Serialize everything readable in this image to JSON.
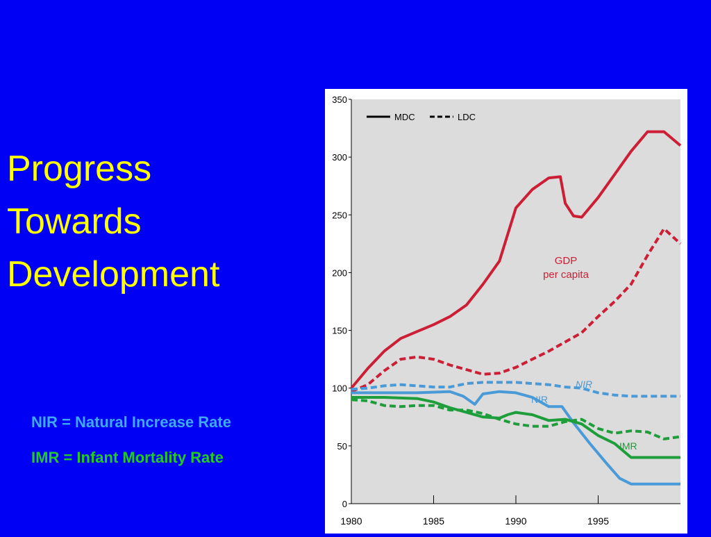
{
  "slide": {
    "title_lines": [
      "Progress",
      "Towards",
      "Development"
    ],
    "definitions": {
      "nir": "NIR = Natural Increase Rate",
      "imr": "IMR = Infant Mortality Rate"
    }
  },
  "colors": {
    "background": "#0000f5",
    "title": "#ffff00",
    "nir_text": "#3fa9f5",
    "imr_text": "#22cc22",
    "plot_bg": "#dcdcdc",
    "gdp": "#cc1f35",
    "nir": "#4a9ad8",
    "imr": "#1e9e3a"
  },
  "chart_data": {
    "type": "line",
    "title": "",
    "xlabel": "",
    "ylabel": "",
    "xlim": [
      1980,
      2000
    ],
    "ylim": [
      0,
      350
    ],
    "x_ticks": [
      1980,
      1985,
      1990,
      1995
    ],
    "y_ticks": [
      0,
      50,
      100,
      150,
      200,
      250,
      300,
      350
    ],
    "grid": false,
    "legend": {
      "position": "top-left",
      "entries": [
        {
          "label": "MDC",
          "style": "solid"
        },
        {
          "label": "LDC",
          "style": "dashed"
        }
      ]
    },
    "annotations": [
      {
        "text": "GDP",
        "series": "gdp"
      },
      {
        "text": "per capita",
        "series": "gdp"
      },
      {
        "text": "NIR",
        "series": "nir",
        "italic": true
      },
      {
        "text": "NIR",
        "series": "nir",
        "italic": false
      },
      {
        "text": "IMR",
        "series": "imr"
      }
    ],
    "series": [
      {
        "name": "MDC",
        "group": "gdp",
        "style": "solid",
        "x": [
          1980,
          1981,
          1982,
          1983,
          1984,
          1985,
          1986,
          1987,
          1988,
          1989,
          1990,
          1991,
          1992,
          1992.7,
          1993,
          1993.5,
          1994,
          1995,
          1996,
          1997,
          1998,
          1999,
          2000
        ],
        "y": [
          100,
          117,
          132,
          143,
          149,
          155,
          162,
          172,
          190,
          210,
          256,
          272,
          282,
          283,
          260,
          249,
          248,
          265,
          285,
          305,
          322,
          322,
          310
        ]
      },
      {
        "name": "LDC",
        "group": "gdp",
        "style": "dashed",
        "x": [
          1980,
          1981,
          1982,
          1983,
          1984,
          1985,
          1986,
          1987,
          1988,
          1989,
          1990,
          1991,
          1992,
          1993,
          1994,
          1995,
          1996,
          1997,
          1998,
          1999,
          2000
        ],
        "y": [
          97,
          103,
          115,
          125,
          127,
          125,
          120,
          116,
          112,
          113,
          118,
          125,
          132,
          140,
          148,
          162,
          175,
          190,
          215,
          238,
          225
        ]
      },
      {
        "name": "MDC",
        "group": "nir",
        "style": "solid",
        "x": [
          1980,
          1982,
          1984,
          1986,
          1986.8,
          1987.5,
          1988,
          1989,
          1990,
          1991,
          1992,
          1992.8,
          1993.5,
          1994.5,
          1995.5,
          1996.3,
          1997,
          1998,
          2000
        ],
        "y": [
          96,
          96,
          96,
          97,
          93,
          86,
          95,
          97,
          96,
          92,
          84,
          84,
          70,
          52,
          35,
          22,
          17,
          17,
          17
        ]
      },
      {
        "name": "LDC",
        "group": "nir",
        "style": "dashed",
        "x": [
          1980,
          1981,
          1982,
          1983,
          1984,
          1985,
          1986,
          1987,
          1988,
          1989,
          1990,
          1991,
          1992,
          1993,
          1994,
          1995,
          1996,
          1997,
          1998,
          1999,
          2000
        ],
        "y": [
          99,
          100,
          102,
          103,
          102,
          101,
          101,
          104,
          105,
          105,
          105,
          104,
          103,
          101,
          100,
          96,
          94,
          93,
          93,
          93,
          93
        ]
      },
      {
        "name": "MDC",
        "group": "imr",
        "style": "solid",
        "x": [
          1980,
          1982,
          1984,
          1985,
          1986,
          1987,
          1988,
          1989,
          1989.5,
          1990,
          1991,
          1992,
          1993,
          1994,
          1995,
          1996,
          1997,
          1998,
          2000
        ],
        "y": [
          92,
          92,
          91,
          88,
          83,
          79,
          75,
          74,
          77,
          79,
          77,
          72,
          73,
          69,
          59,
          52,
          40,
          40,
          40
        ]
      },
      {
        "name": "LDC",
        "group": "imr",
        "style": "dashed",
        "x": [
          1980,
          1981,
          1982,
          1983,
          1984,
          1985,
          1986,
          1987,
          1988,
          1989,
          1990,
          1991,
          1992,
          1993,
          1994,
          1995,
          1996,
          1997,
          1998,
          1999,
          2000
        ],
        "y": [
          90,
          89,
          85,
          84,
          85,
          85,
          81,
          81,
          78,
          73,
          69,
          67,
          67,
          71,
          73,
          65,
          61,
          63,
          62,
          56,
          58
        ]
      }
    ]
  }
}
